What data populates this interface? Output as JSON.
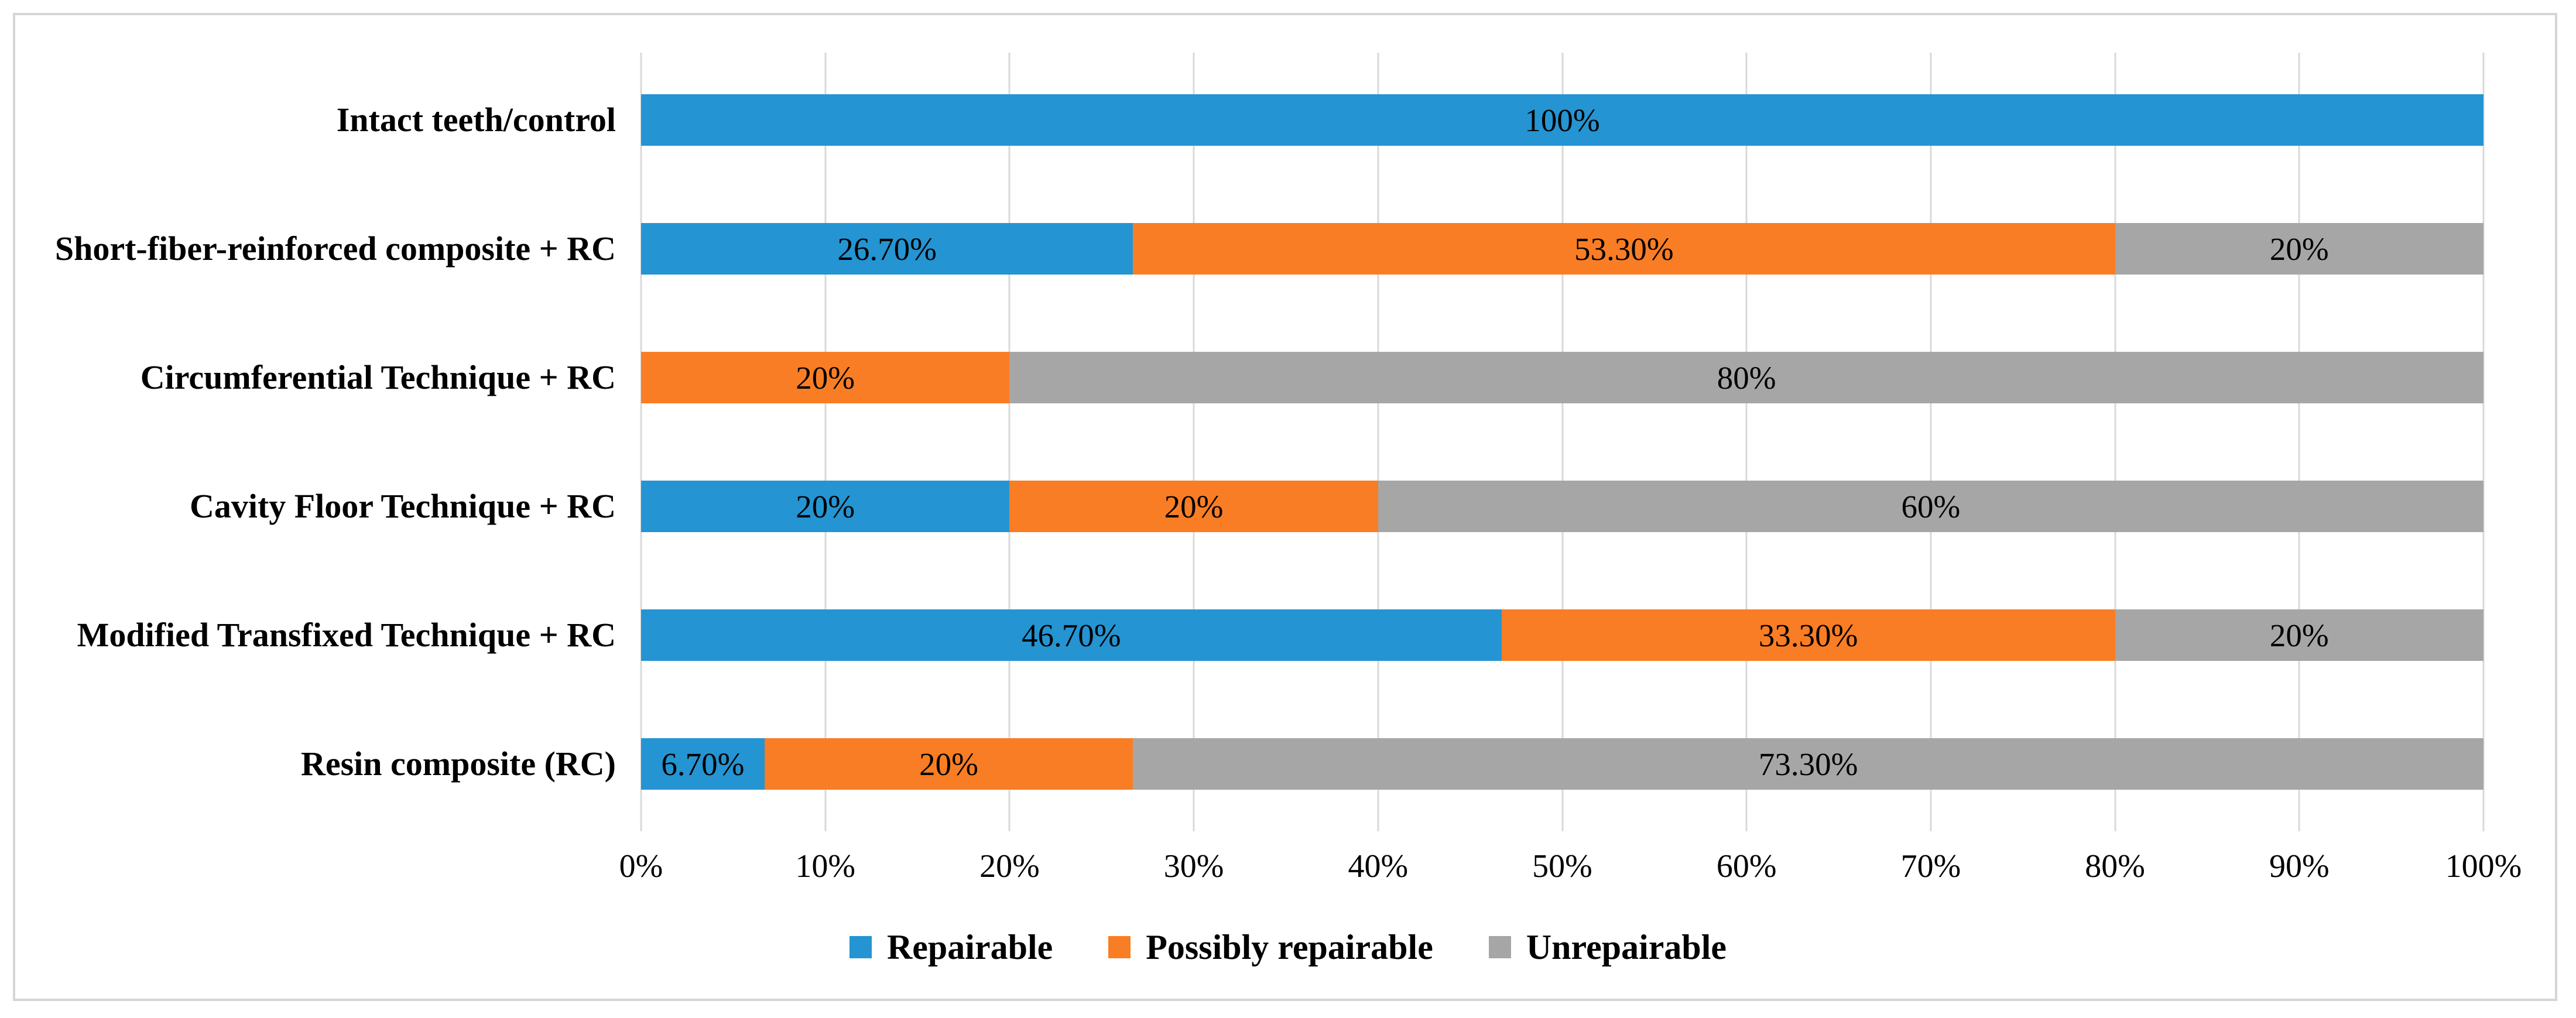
{
  "chart_data": {
    "type": "bar",
    "orientation": "horizontal-stacked",
    "title": "",
    "xlabel": "",
    "ylabel": "",
    "xlim": [
      0,
      100
    ],
    "grid": true,
    "legend_position": "bottom",
    "categories": [
      "Intact teeth/control",
      "Short-fiber-reinforced composite + RC",
      "Circumferential Technique + RC",
      "Cavity Floor Technique + RC",
      "Modified Transfixed Technique + RC",
      "Resin composite (RC)"
    ],
    "x_ticks": [
      "0%",
      "10%",
      "20%",
      "30%",
      "40%",
      "50%",
      "60%",
      "70%",
      "80%",
      "90%",
      "100%"
    ],
    "series": [
      {
        "name": "Repairable",
        "color": "#2494d2",
        "values": [
          100,
          26.7,
          0,
          20,
          46.7,
          6.7
        ],
        "labels": [
          "100%",
          "26.70%",
          "",
          "20%",
          "46.70%",
          "6.70%"
        ]
      },
      {
        "name": "Possibly repairable",
        "color": "#f97d24",
        "values": [
          0,
          53.3,
          20,
          20,
          33.3,
          20
        ],
        "labels": [
          "",
          "53.30%",
          "20%",
          "20%",
          "33.30%",
          "20%"
        ]
      },
      {
        "name": "Unrepairable",
        "color": "#a6a6a6",
        "values": [
          0,
          20,
          80,
          60,
          20,
          73.3
        ],
        "labels": [
          "",
          "20%",
          "80%",
          "60%",
          "20%",
          "73.30%"
        ]
      }
    ],
    "colors": {
      "gridline": "#d9d9d9",
      "frame_border": "#d5d5d5",
      "label_text": "#000000"
    }
  }
}
